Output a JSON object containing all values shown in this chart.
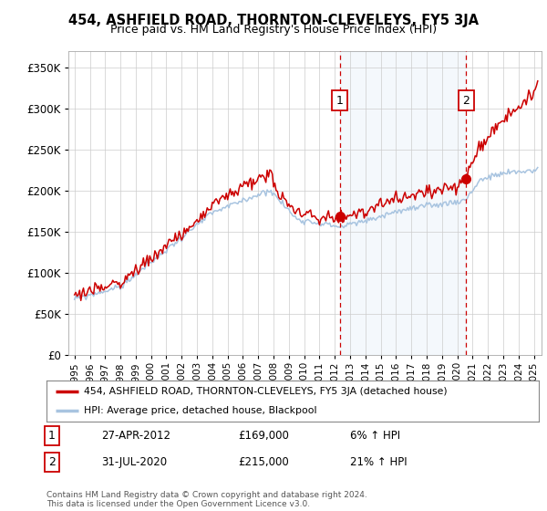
{
  "title": "454, ASHFIELD ROAD, THORNTON-CLEVELEYS, FY5 3JA",
  "subtitle": "Price paid vs. HM Land Registry's House Price Index (HPI)",
  "ytick_vals": [
    0,
    50000,
    100000,
    150000,
    200000,
    250000,
    300000,
    350000
  ],
  "ylim": [
    0,
    370000
  ],
  "xlim_start": 1994.6,
  "xlim_end": 2025.5,
  "hpi_color": "#a8c4e0",
  "hpi_fill_color": "#d4e6f5",
  "price_color": "#cc0000",
  "vline_color": "#cc0000",
  "marker1_date": 2012.32,
  "marker1_price": 169000,
  "marker2_date": 2020.58,
  "marker2_price": 215000,
  "marker1_label": "27-APR-2012",
  "marker1_amount": "£169,000",
  "marker1_hpi": "6% ↑ HPI",
  "marker2_label": "31-JUL-2020",
  "marker2_amount": "£215,000",
  "marker2_hpi": "21% ↑ HPI",
  "legend_line1": "454, ASHFIELD ROAD, THORNTON-CLEVELEYS, FY5 3JA (detached house)",
  "legend_line2": "HPI: Average price, detached house, Blackpool",
  "footer": "Contains HM Land Registry data © Crown copyright and database right 2024.\nThis data is licensed under the Open Government Licence v3.0.",
  "background_color": "#ffffff",
  "grid_color": "#cccccc",
  "shade_alpha": 0.25
}
